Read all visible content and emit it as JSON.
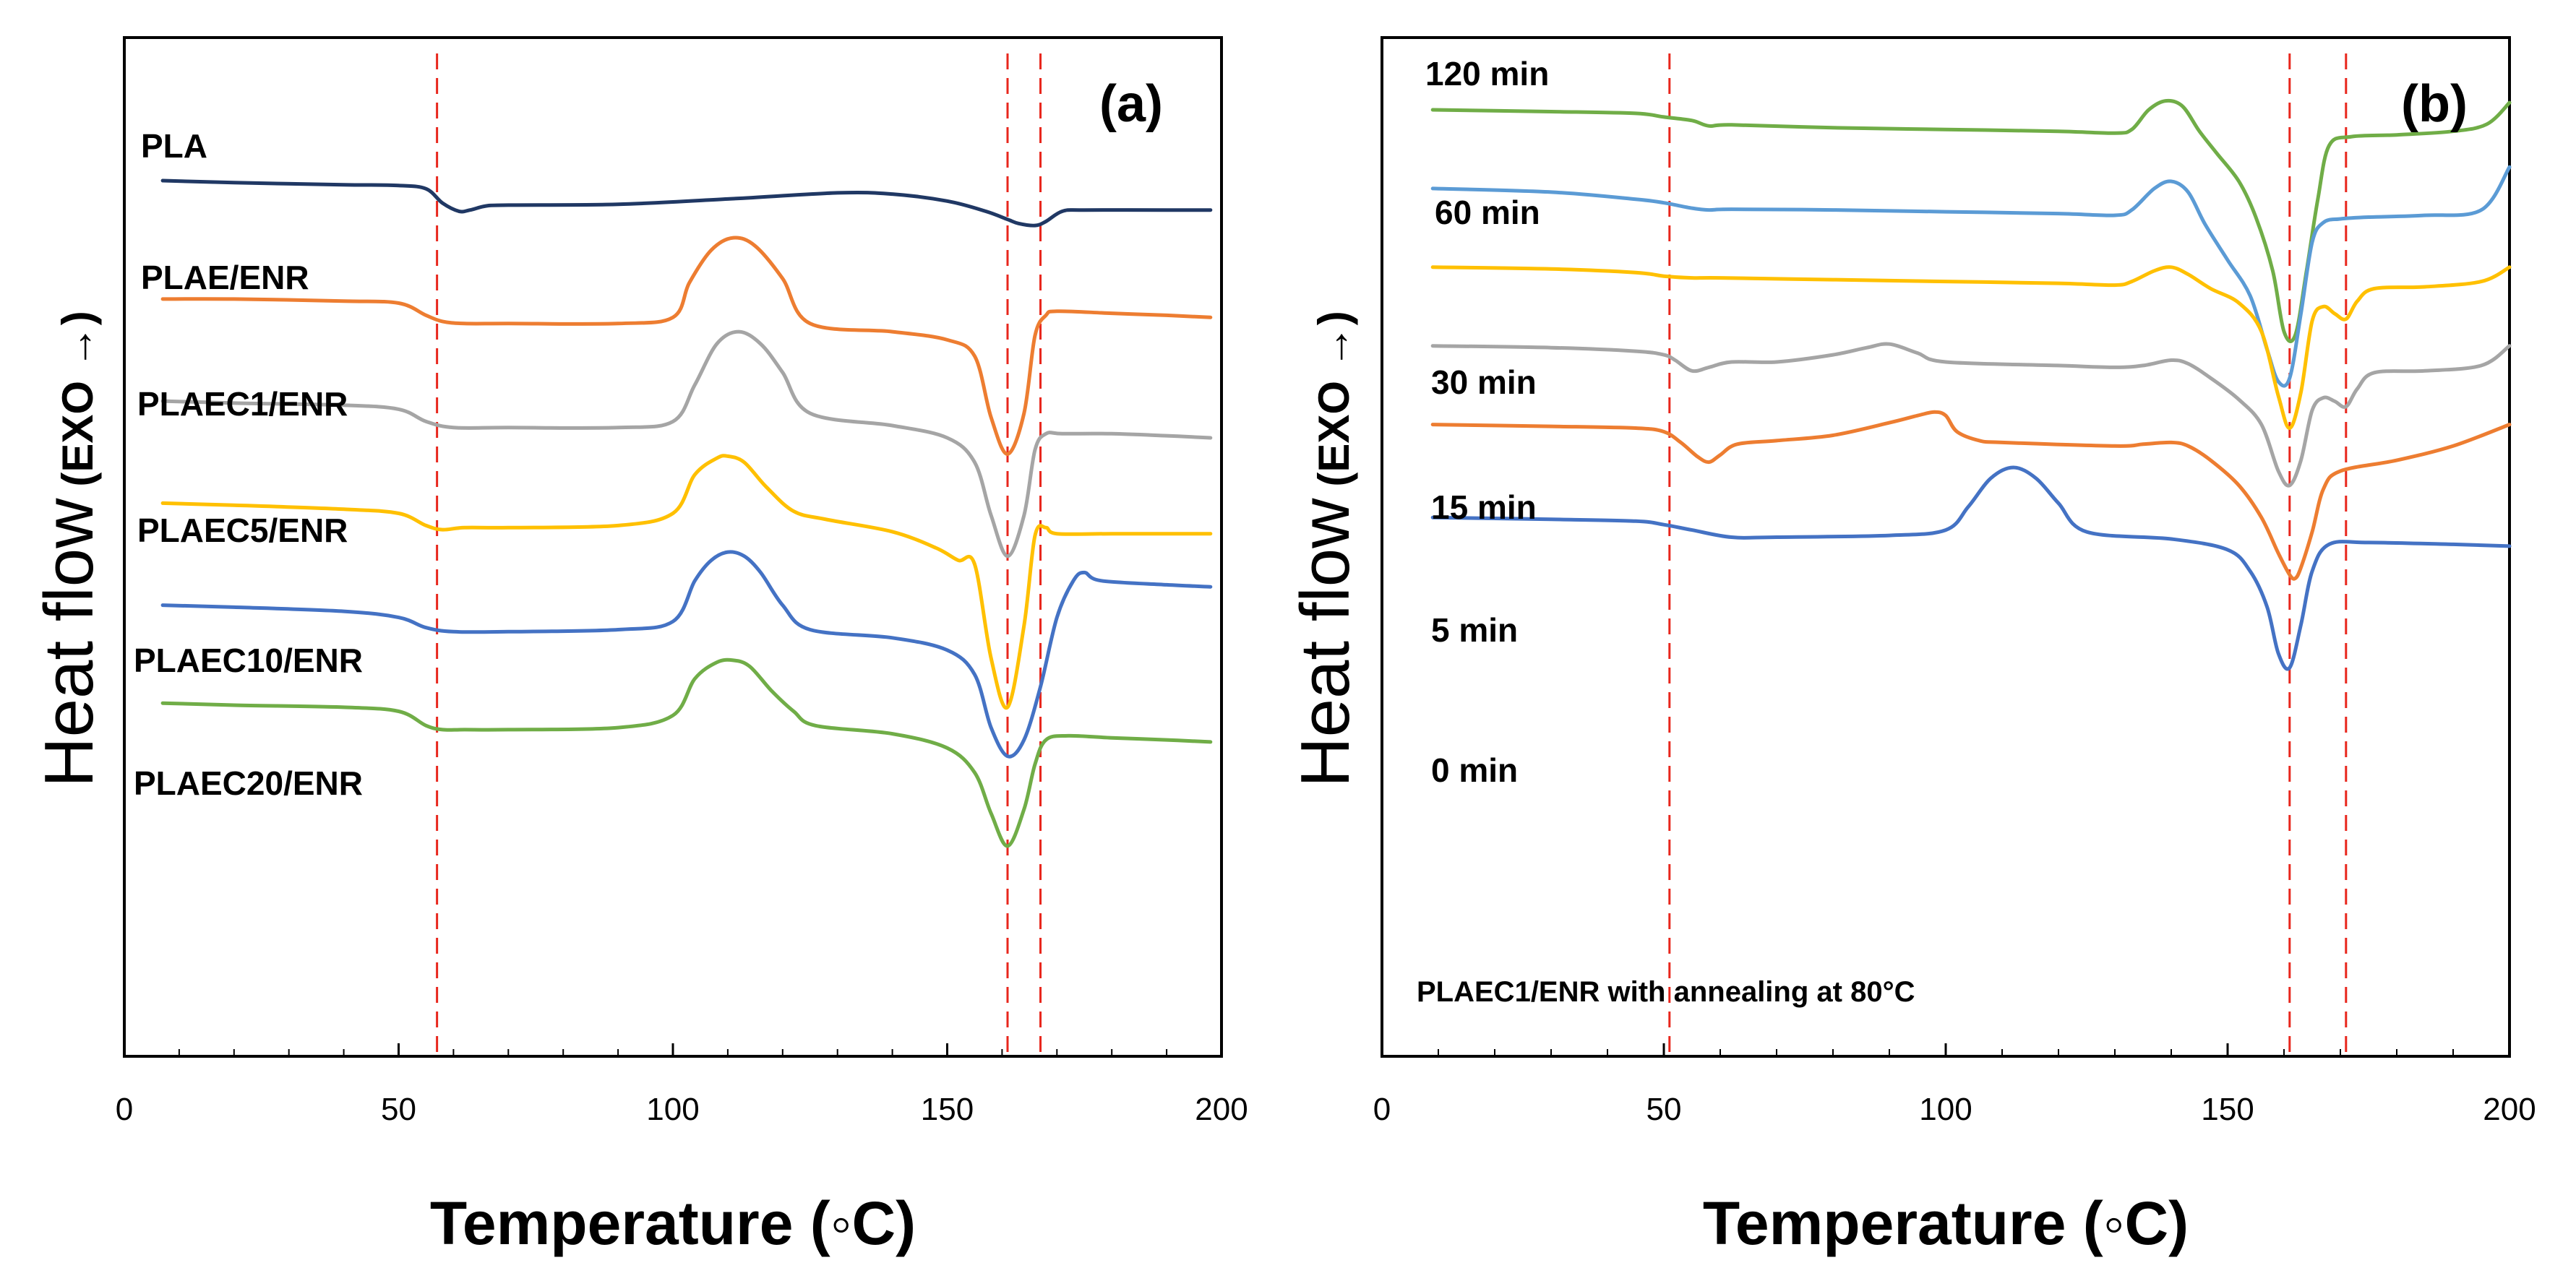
{
  "chart_data": [
    {
      "type": "line",
      "panel": "(a)",
      "xlabel": "Temperature (◦C)",
      "ylabel": "Heat flow",
      "ylabel_suffix": "(EXO →)",
      "xlim": [
        0,
        200
      ],
      "xticks": [
        "0",
        "50",
        "100",
        "150",
        "200"
      ],
      "yticks": "none (arbitrary units, curves offset vertically)",
      "reference_lines_x": [
        57,
        161,
        167
      ],
      "series": [
        {
          "name": "PLA",
          "color": "#203864",
          "offset": 0.0,
          "x": [
            7,
            20,
            40,
            50,
            55,
            58,
            61,
            63,
            66,
            70,
            90,
            110,
            130,
            140,
            150,
            157,
            161,
            163,
            166,
            168,
            171,
            175,
            190,
            198
          ],
          "y": [
            0.0,
            -0.05,
            -0.1,
            -0.12,
            -0.2,
            -0.55,
            -0.75,
            -0.72,
            -0.62,
            -0.6,
            -0.58,
            -0.45,
            -0.3,
            -0.33,
            -0.5,
            -0.75,
            -0.95,
            -1.05,
            -1.1,
            -1.0,
            -0.75,
            -0.72,
            -0.72,
            -0.72
          ]
        },
        {
          "name": "PLAE/ENR",
          "color": "#ed7d31",
          "offset": -2.9,
          "x": [
            7,
            20,
            40,
            50,
            55,
            58,
            62,
            70,
            90,
            100,
            103,
            107,
            111,
            115,
            120,
            125,
            140,
            150,
            155,
            158,
            161,
            164,
            166,
            168,
            170,
            180,
            190,
            198
          ],
          "y": [
            0.0,
            0.0,
            -0.05,
            -0.1,
            -0.4,
            -0.55,
            -0.6,
            -0.6,
            -0.6,
            -0.45,
            0.4,
            1.2,
            1.5,
            1.3,
            0.5,
            -0.6,
            -0.8,
            -1.0,
            -1.4,
            -2.9,
            -3.8,
            -2.8,
            -0.9,
            -0.4,
            -0.3,
            -0.35,
            -0.4,
            -0.45
          ]
        },
        {
          "name": "PLAEC1/ENR",
          "color": "#a5a5a5",
          "offset": -5.4,
          "x": [
            7,
            20,
            40,
            50,
            55,
            60,
            70,
            90,
            100,
            104,
            108,
            112,
            116,
            120,
            125,
            140,
            150,
            155,
            158,
            161,
            164,
            166,
            168,
            171,
            180,
            190,
            198
          ],
          "y": [
            0.0,
            -0.05,
            -0.1,
            -0.2,
            -0.5,
            -0.65,
            -0.65,
            -0.65,
            -0.5,
            0.4,
            1.4,
            1.7,
            1.4,
            0.7,
            -0.3,
            -0.6,
            -0.9,
            -1.5,
            -2.8,
            -3.8,
            -2.8,
            -1.2,
            -0.8,
            -0.8,
            -0.8,
            -0.85,
            -0.9
          ]
        },
        {
          "name": "PLAEC5/ENR",
          "color": "#ffc000",
          "offset": -7.9,
          "x": [
            7,
            20,
            40,
            50,
            55,
            58,
            62,
            70,
            90,
            100,
            104,
            108,
            110,
            113,
            117,
            122,
            128,
            140,
            148,
            152,
            155,
            158,
            161,
            164,
            166,
            168,
            170,
            180,
            190,
            198
          ],
          "y": [
            0.0,
            -0.05,
            -0.15,
            -0.25,
            -0.55,
            -0.65,
            -0.6,
            -0.6,
            -0.55,
            -0.25,
            0.7,
            1.1,
            1.15,
            1.0,
            0.4,
            -0.2,
            -0.4,
            -0.7,
            -1.1,
            -1.4,
            -1.5,
            -3.8,
            -5.0,
            -3.0,
            -0.8,
            -0.6,
            -0.75,
            -0.75,
            -0.75,
            -0.75
          ]
        },
        {
          "name": "PLAEC10/ENR",
          "color": "#4472c4",
          "offset": -10.4,
          "x": [
            7,
            20,
            40,
            50,
            55,
            60,
            70,
            90,
            100,
            104,
            107,
            110,
            113,
            116,
            120,
            125,
            140,
            150,
            155,
            158,
            161,
            164,
            167,
            170,
            173,
            175,
            178,
            190,
            198
          ],
          "y": [
            0.0,
            -0.05,
            -0.15,
            -0.3,
            -0.55,
            -0.65,
            -0.65,
            -0.6,
            -0.4,
            0.6,
            1.1,
            1.3,
            1.2,
            0.8,
            0.0,
            -0.6,
            -0.8,
            -1.1,
            -1.7,
            -3.0,
            -3.7,
            -3.3,
            -2.0,
            -0.3,
            0.6,
            0.8,
            0.6,
            0.5,
            0.45
          ]
        },
        {
          "name": "PLAEC20/ENR",
          "color": "#70ad47",
          "offset": -12.8,
          "x": [
            7,
            20,
            40,
            50,
            55,
            58,
            62,
            70,
            90,
            100,
            104,
            108,
            111,
            114,
            118,
            122,
            126,
            140,
            150,
            155,
            158,
            161,
            164,
            166,
            168,
            172,
            180,
            190,
            198
          ],
          "y": [
            0.0,
            -0.05,
            -0.1,
            -0.2,
            -0.55,
            -0.65,
            -0.65,
            -0.65,
            -0.6,
            -0.3,
            0.6,
            1.0,
            1.05,
            0.9,
            0.3,
            -0.2,
            -0.55,
            -0.75,
            -1.1,
            -1.7,
            -2.7,
            -3.5,
            -2.6,
            -1.5,
            -0.9,
            -0.8,
            -0.85,
            -0.9,
            -0.95
          ]
        }
      ]
    },
    {
      "type": "line",
      "panel": "(b)",
      "xlabel": "Temperature (◦C)",
      "ylabel": "Heat flow",
      "ylabel_suffix": "(EXO →)",
      "xlim": [
        0,
        200
      ],
      "xticks": [
        "0",
        "50",
        "100",
        "150",
        "200"
      ],
      "yticks": "none (arbitrary units, curves offset vertically)",
      "reference_lines_x": [
        51,
        161,
        171
      ],
      "annotation": "PLAEC1/ENR with annealing at 80°C",
      "series": [
        {
          "name": "120 min",
          "color": "#70ad47",
          "offset": 0.0,
          "x": [
            9,
            30,
            45,
            50,
            55,
            58,
            62,
            80,
            100,
            120,
            130,
            133,
            136,
            139,
            142,
            145,
            148,
            152,
            155,
            158,
            160,
            162,
            164,
            166,
            168,
            172,
            180,
            190,
            196,
            200
          ],
          "y": [
            0.0,
            -0.05,
            -0.1,
            -0.2,
            -0.3,
            -0.45,
            -0.42,
            -0.5,
            -0.55,
            -0.6,
            -0.65,
            -0.55,
            0.0,
            0.25,
            0.1,
            -0.6,
            -1.2,
            -2.0,
            -3.0,
            -4.5,
            -6.2,
            -6.3,
            -4.5,
            -2.5,
            -1.0,
            -0.75,
            -0.7,
            -0.6,
            -0.4,
            0.2
          ]
        },
        {
          "name": "60 min",
          "color": "#5b9bd5",
          "offset": -2.2,
          "x": [
            9,
            30,
            45,
            50,
            55,
            58,
            62,
            80,
            100,
            120,
            130,
            133,
            137,
            140,
            143,
            146,
            150,
            154,
            157,
            159,
            161,
            163,
            165,
            167,
            170,
            175,
            185,
            195,
            200
          ],
          "y": [
            0.0,
            -0.1,
            -0.3,
            -0.4,
            -0.55,
            -0.6,
            -0.58,
            -0.6,
            -0.65,
            -0.7,
            -0.75,
            -0.6,
            0.0,
            0.2,
            -0.1,
            -1.0,
            -2.0,
            -3.0,
            -4.5,
            -5.4,
            -5.3,
            -3.5,
            -1.5,
            -0.95,
            -0.85,
            -0.8,
            -0.75,
            -0.6,
            0.6
          ]
        },
        {
          "name": "30 min",
          "color": "#ffc000",
          "offset": -4.4,
          "x": [
            9,
            30,
            45,
            50,
            55,
            60,
            80,
            100,
            120,
            130,
            133,
            137,
            140,
            143,
            147,
            152,
            156,
            159,
            161,
            163,
            165,
            167,
            169,
            171,
            173,
            176,
            185,
            195,
            200
          ],
          "y": [
            0.0,
            -0.05,
            -0.15,
            -0.25,
            -0.3,
            -0.3,
            -0.35,
            -0.4,
            -0.45,
            -0.5,
            -0.4,
            -0.1,
            0.0,
            -0.2,
            -0.6,
            -1.0,
            -1.8,
            -3.6,
            -4.5,
            -3.5,
            -1.5,
            -1.1,
            -1.3,
            -1.45,
            -0.95,
            -0.6,
            -0.55,
            -0.4,
            0.0
          ]
        },
        {
          "name": "15 min",
          "color": "#a5a5a5",
          "offset": -6.6,
          "x": [
            9,
            30,
            45,
            50,
            52,
            55,
            58,
            62,
            70,
            80,
            86,
            90,
            95,
            100,
            120,
            130,
            135,
            140,
            143,
            147,
            152,
            156,
            159,
            161,
            163,
            165,
            167,
            169,
            171,
            173,
            176,
            185,
            195,
            200
          ],
          "y": [
            0.0,
            -0.05,
            -0.15,
            -0.25,
            -0.4,
            -0.7,
            -0.6,
            -0.45,
            -0.45,
            -0.25,
            -0.05,
            0.05,
            -0.2,
            -0.45,
            -0.55,
            -0.6,
            -0.55,
            -0.4,
            -0.5,
            -0.9,
            -1.5,
            -2.2,
            -3.5,
            -3.9,
            -3.2,
            -1.8,
            -1.45,
            -1.55,
            -1.7,
            -1.2,
            -0.75,
            -0.7,
            -0.55,
            0.0
          ]
        },
        {
          "name": "5 min",
          "color": "#ed7d31",
          "offset": -8.8,
          "x": [
            9,
            30,
            45,
            50,
            53,
            56,
            58,
            60,
            63,
            70,
            80,
            90,
            95,
            98,
            100,
            102,
            106,
            110,
            130,
            135,
            140,
            143,
            147,
            152,
            156,
            159,
            161,
            162,
            163,
            165,
            167,
            170,
            180,
            190,
            200
          ],
          "y": [
            0.0,
            -0.05,
            -0.1,
            -0.2,
            -0.5,
            -0.9,
            -1.05,
            -0.85,
            -0.55,
            -0.45,
            -0.3,
            0.05,
            0.25,
            0.35,
            0.25,
            -0.2,
            -0.45,
            -0.5,
            -0.6,
            -0.55,
            -0.5,
            -0.6,
            -1.0,
            -1.7,
            -2.6,
            -3.6,
            -4.2,
            -4.3,
            -4.0,
            -3.0,
            -1.8,
            -1.3,
            -1.0,
            -0.6,
            0.0
          ]
        },
        {
          "name": "0 min",
          "color": "#4472c4",
          "offset": -11.4,
          "x": [
            9,
            30,
            45,
            50,
            55,
            62,
            70,
            90,
            100,
            104,
            108,
            112,
            116,
            120,
            125,
            140,
            150,
            154,
            157,
            159,
            161,
            163,
            165,
            168,
            175,
            190,
            200
          ],
          "y": [
            0.0,
            -0.05,
            -0.1,
            -0.2,
            -0.35,
            -0.55,
            -0.55,
            -0.5,
            -0.35,
            0.3,
            1.1,
            1.4,
            1.1,
            0.4,
            -0.4,
            -0.6,
            -0.9,
            -1.5,
            -2.5,
            -3.8,
            -4.2,
            -3.0,
            -1.5,
            -0.75,
            -0.7,
            -0.75,
            -0.8
          ]
        }
      ]
    }
  ]
}
